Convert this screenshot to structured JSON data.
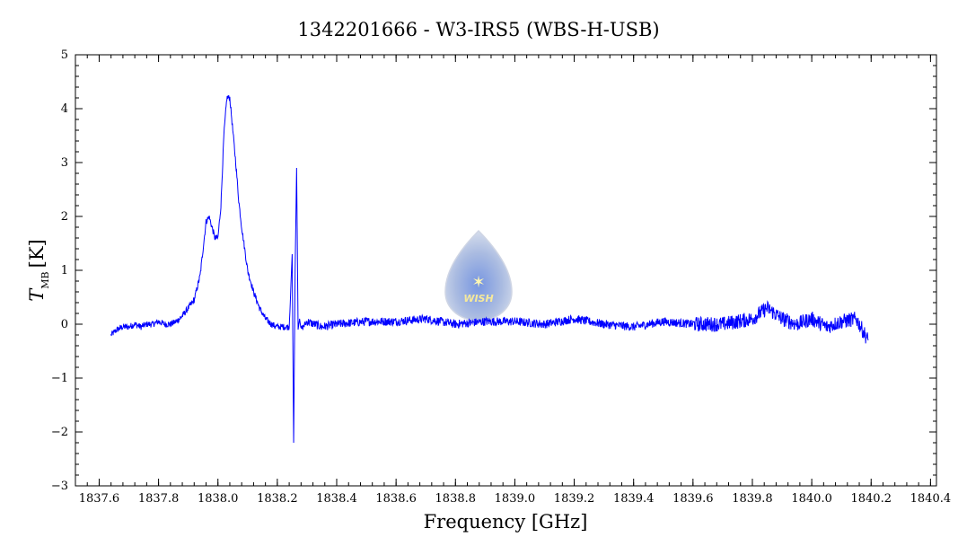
{
  "chart_data": {
    "type": "line",
    "title": "1342201666 - W3-IRS5 (WBS-H-USB)",
    "xlabel": "Frequency [GHz]",
    "ylabel_main": "T",
    "ylabel_sub": "MB",
    "ylabel_unit": "[K]",
    "xlim": [
      1837.52,
      1840.42
    ],
    "ylim": [
      -3,
      5
    ],
    "xticks": [
      1837.6,
      1837.8,
      1838.0,
      1838.2,
      1838.4,
      1838.6,
      1838.8,
      1839.0,
      1839.2,
      1839.4,
      1839.6,
      1839.8,
      1840.0,
      1840.2,
      1840.4
    ],
    "xtick_labels": [
      "1837.6",
      "1837.8",
      "1838.0",
      "1838.2",
      "1838.4",
      "1838.6",
      "1838.8",
      "1839.0",
      "1839.2",
      "1839.4",
      "1839.6",
      "1839.8",
      "1840.0",
      "1840.2",
      "1840.4"
    ],
    "yticks": [
      -3,
      -2,
      -1,
      0,
      1,
      2,
      3,
      4,
      5
    ],
    "ytick_labels": [
      "−3",
      "−2",
      "−1",
      "0",
      "1",
      "2",
      "3",
      "4",
      "5"
    ],
    "grid": false,
    "line_color": "#0000ff",
    "series": [
      {
        "x": [
          1837.64,
          1837.66,
          1837.68,
          1837.7,
          1837.72,
          1837.74,
          1837.76,
          1837.78,
          1837.8,
          1837.82,
          1837.84,
          1837.86,
          1837.88,
          1837.9,
          1837.92,
          1837.94,
          1837.95,
          1837.96,
          1837.97,
          1837.98,
          1837.99,
          1838.0,
          1838.01,
          1838.02,
          1838.03,
          1838.04,
          1838.05,
          1838.06,
          1838.07,
          1838.08,
          1838.09,
          1838.1,
          1838.12,
          1838.14,
          1838.16,
          1838.18,
          1838.2,
          1838.22,
          1838.24,
          1838.25,
          1838.255,
          1838.26,
          1838.265,
          1838.27,
          1838.275,
          1838.28,
          1838.3,
          1838.35,
          1838.4,
          1838.5,
          1838.6,
          1838.7,
          1838.8,
          1838.9,
          1839.0,
          1839.1,
          1839.2,
          1839.3,
          1839.4,
          1839.5,
          1839.6,
          1839.7,
          1839.8,
          1839.85,
          1839.9,
          1839.95,
          1840.0,
          1840.05,
          1840.1,
          1840.15,
          1840.19
        ],
        "y": [
          -0.2,
          -0.1,
          -0.05,
          -0.05,
          0.0,
          -0.05,
          0.0,
          0.0,
          0.05,
          0.0,
          0.0,
          0.05,
          0.15,
          0.3,
          0.45,
          0.9,
          1.4,
          1.9,
          2.0,
          1.8,
          1.6,
          1.6,
          2.2,
          3.5,
          4.2,
          4.2,
          3.6,
          3.0,
          2.3,
          1.8,
          1.4,
          1.0,
          0.6,
          0.3,
          0.1,
          0.0,
          -0.05,
          -0.05,
          -0.05,
          1.3,
          -2.2,
          1.0,
          2.9,
          -0.1,
          0.1,
          -0.1,
          0.05,
          -0.05,
          0.0,
          0.05,
          0.05,
          0.1,
          0.0,
          0.05,
          0.05,
          0.0,
          0.1,
          0.0,
          -0.05,
          0.05,
          0.0,
          0.0,
          0.1,
          0.3,
          0.1,
          0.0,
          0.1,
          -0.05,
          0.05,
          0.1,
          -0.3
        ]
      }
    ]
  },
  "logo": {
    "text": "WISH"
  }
}
